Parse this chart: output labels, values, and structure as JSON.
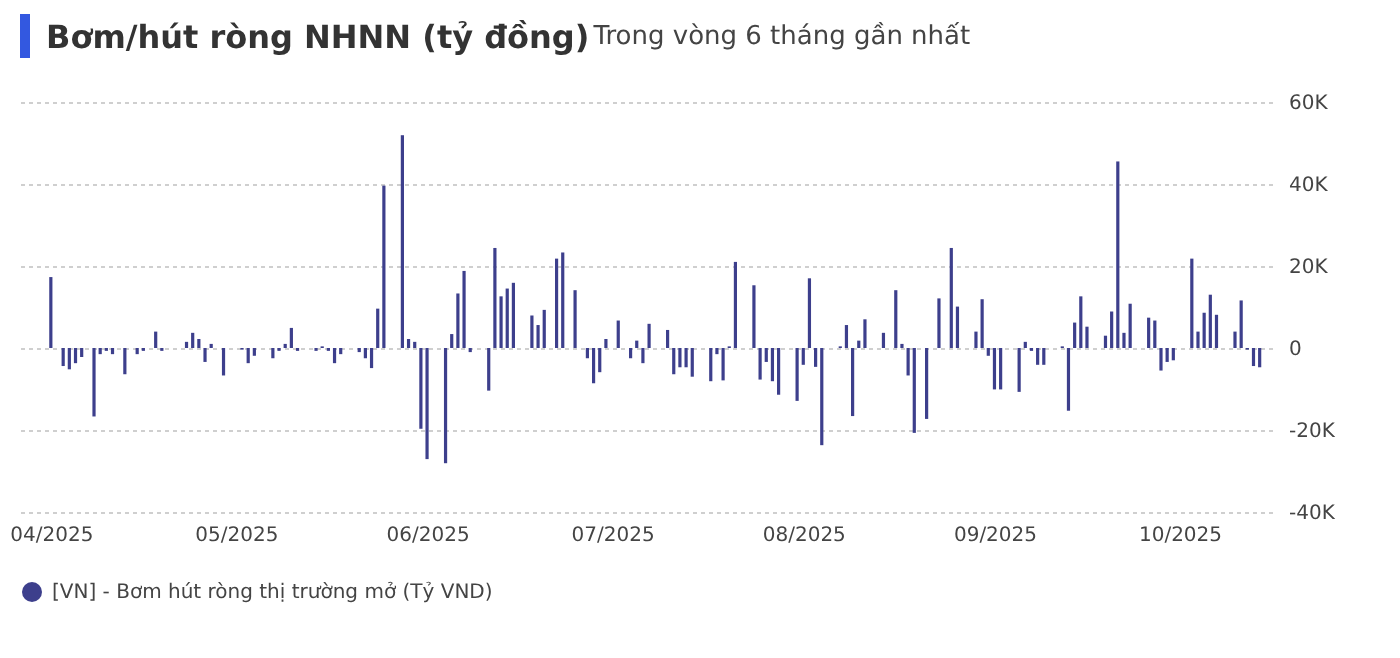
{
  "chart_data": {
    "type": "bar",
    "title": "Bơm/hút ròng NHNN (tỷ đồng)",
    "subtitle": "Trong vòng 6 tháng gần nhất",
    "x": [
      "2025-04-01",
      "2025-04-03",
      "2025-04-04",
      "2025-04-05",
      "2025-04-06",
      "2025-04-08",
      "2025-04-09",
      "2025-04-10",
      "2025-04-11",
      "2025-04-13",
      "2025-04-15",
      "2025-04-16",
      "2025-04-18",
      "2025-04-19",
      "2025-04-23",
      "2025-04-24",
      "2025-04-25",
      "2025-04-26",
      "2025-04-27",
      "2025-04-29",
      "2025-05-02",
      "2025-05-03",
      "2025-05-04",
      "2025-05-07",
      "2025-05-08",
      "2025-05-09",
      "2025-05-10",
      "2025-05-11",
      "2025-05-14",
      "2025-05-15",
      "2025-05-16",
      "2025-05-17",
      "2025-05-18",
      "2025-05-21",
      "2025-05-22",
      "2025-05-23",
      "2025-05-24",
      "2025-05-25",
      "2025-05-28",
      "2025-05-29",
      "2025-05-30",
      "2025-05-31",
      "2025-06-01",
      "2025-06-04",
      "2025-06-05",
      "2025-06-06",
      "2025-06-07",
      "2025-06-08",
      "2025-06-11",
      "2025-06-12",
      "2025-06-13",
      "2025-06-14",
      "2025-06-15",
      "2025-06-18",
      "2025-06-19",
      "2025-06-20",
      "2025-06-22",
      "2025-06-23",
      "2025-06-25",
      "2025-06-27",
      "2025-06-28",
      "2025-06-29",
      "2025-06-30",
      "2025-07-02",
      "2025-07-04",
      "2025-07-05",
      "2025-07-06",
      "2025-07-07",
      "2025-07-10",
      "2025-07-11",
      "2025-07-12",
      "2025-07-13",
      "2025-07-14",
      "2025-07-17",
      "2025-07-18",
      "2025-07-19",
      "2025-07-20",
      "2025-07-21",
      "2025-07-24",
      "2025-07-25",
      "2025-07-26",
      "2025-07-27",
      "2025-07-28",
      "2025-07-31",
      "2025-08-01",
      "2025-08-02",
      "2025-08-03",
      "2025-08-04",
      "2025-08-07",
      "2025-08-08",
      "2025-08-09",
      "2025-08-10",
      "2025-08-11",
      "2025-08-14",
      "2025-08-16",
      "2025-08-17",
      "2025-08-18",
      "2025-08-19",
      "2025-08-21",
      "2025-08-23",
      "2025-08-25",
      "2025-08-26",
      "2025-08-29",
      "2025-08-30",
      "2025-08-31",
      "2025-09-01",
      "2025-09-02",
      "2025-09-05",
      "2025-09-06",
      "2025-09-07",
      "2025-09-08",
      "2025-09-09",
      "2025-09-12",
      "2025-09-13",
      "2025-09-14",
      "2025-09-15",
      "2025-09-16",
      "2025-09-19",
      "2025-09-20",
      "2025-09-21",
      "2025-09-22",
      "2025-09-23",
      "2025-09-26",
      "2025-09-27",
      "2025-09-28",
      "2025-09-29",
      "2025-09-30",
      "2025-10-03",
      "2025-10-04",
      "2025-10-05",
      "2025-10-06",
      "2025-10-07",
      "2025-10-10",
      "2025-10-11",
      "2025-10-12",
      "2025-10-13",
      "2025-10-14"
    ],
    "series": [
      {
        "name": "[VN] - Bơm hút ròng thị trường mở (Tỷ VND)",
        "color": "#3d3f8c",
        "values": [
          17300,
          -4400,
          -5200,
          -3700,
          -2200,
          -16700,
          -1500,
          -700,
          -1500,
          -6400,
          -1500,
          -700,
          4000,
          -700,
          1500,
          3700,
          2200,
          -3400,
          1000,
          -6700,
          -400,
          -3700,
          -1900,
          -2500,
          -700,
          1000,
          4900,
          -700,
          -700,
          400,
          -700,
          -3700,
          -1500,
          -1000,
          -2500,
          -4900,
          9600,
          39600,
          51900,
          2200,
          1500,
          -19700,
          -27100,
          -28100,
          3400,
          13300,
          18800,
          -1000,
          -10400,
          24400,
          12600,
          14500,
          15900,
          7900,
          5600,
          9300,
          21800,
          23300,
          14100,
          -2500,
          -8600,
          -5900,
          2200,
          6700,
          -2500,
          1800,
          -3700,
          5900,
          4400,
          -6400,
          -4700,
          -4700,
          -7000,
          -8100,
          -1500,
          -7900,
          400,
          21000,
          15300,
          -7700,
          -3400,
          -8100,
          -11400,
          -12900,
          -4100,
          17000,
          -4600,
          -23700,
          400,
          5600,
          -16600,
          1800,
          7000,
          3700,
          14100,
          1000,
          -6700,
          -20700,
          -17300,
          12100,
          24400,
          10100,
          4000,
          11900,
          -1900,
          -10100,
          -10100,
          -10700,
          1500,
          -700,
          -4100,
          -4100,
          400,
          -15300,
          6200,
          12600,
          5200,
          3000,
          8900,
          45500,
          3700,
          10800,
          7400,
          6700,
          -5500,
          -3400,
          -3000,
          21800,
          4000,
          8600,
          13000,
          8100,
          4000,
          11600,
          -400,
          -4400,
          -4700
        ]
      }
    ],
    "xlim": [
      "2025-03-27",
      "2025-10-16"
    ],
    "xticks": [
      {
        "value": "2025-04-01",
        "label": "04/2025"
      },
      {
        "value": "2025-05-01",
        "label": "05/2025"
      },
      {
        "value": "2025-06-01",
        "label": "06/2025"
      },
      {
        "value": "2025-07-01",
        "label": "07/2025"
      },
      {
        "value": "2025-08-01",
        "label": "08/2025"
      },
      {
        "value": "2025-09-01",
        "label": "09/2025"
      },
      {
        "value": "2025-10-01",
        "label": "10/2025"
      }
    ],
    "ylim": [
      -40000,
      60000
    ],
    "yticks": [
      {
        "value": -40000,
        "label": "-40K"
      },
      {
        "value": -20000,
        "label": "-20K"
      },
      0,
      {
        "value": 20000,
        "label": "20K"
      },
      {
        "value": 40000,
        "label": "40K"
      },
      {
        "value": 60000,
        "label": "60K"
      }
    ],
    "grid": "y",
    "legend": "bottom"
  }
}
